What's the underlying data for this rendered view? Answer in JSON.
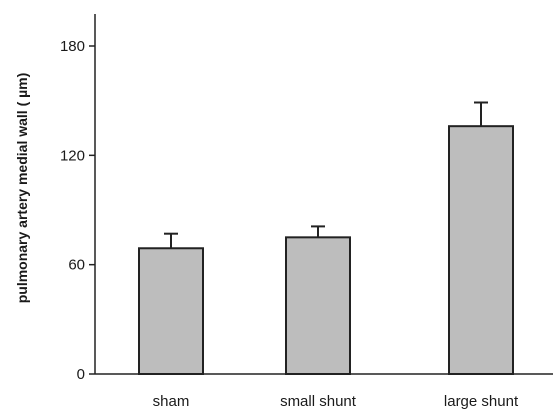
{
  "chart_data": {
    "type": "bar",
    "title": "",
    "xlabel": "",
    "ylabel": "pulmonary artery medial wall ( µm)",
    "categories": [
      "sham",
      "small shunt",
      "large shunt"
    ],
    "values": [
      69,
      75,
      136
    ],
    "error": [
      8,
      6,
      13
    ],
    "ylim": [
      0,
      180
    ],
    "yticks": [
      0,
      60,
      120,
      180
    ],
    "grid": false,
    "legend": "none",
    "colors": {
      "bar_fill": "#bdbdbd",
      "bar_stroke": "#222222",
      "axis": "#222222"
    }
  }
}
